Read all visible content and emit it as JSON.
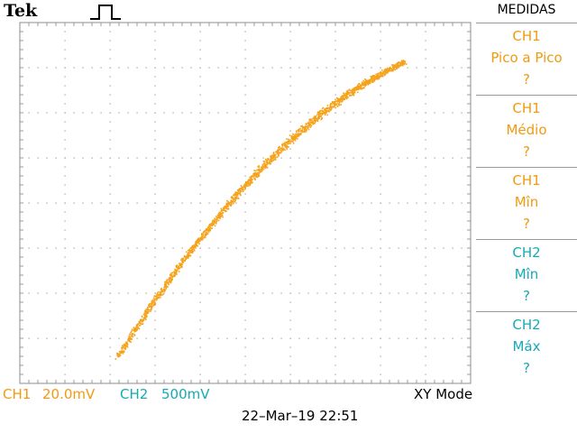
{
  "brand": "Tek",
  "menu": {
    "title": "MEDIDAS",
    "items": [
      {
        "line1": "CH1",
        "line2": "Pico a Pico",
        "value": "?",
        "color": "#f09a10"
      },
      {
        "line1": "CH1",
        "line2": "Médio",
        "value": "?",
        "color": "#f09a10"
      },
      {
        "line1": "CH1",
        "line2": "Mîn",
        "value": "?",
        "color": "#f09a10"
      },
      {
        "line1": "CH2",
        "line2": "Mîn",
        "value": "?",
        "color": "#17a9b5"
      },
      {
        "line1": "CH2",
        "line2": "Máx",
        "value": "?",
        "color": "#17a9b5"
      }
    ]
  },
  "status": {
    "ch1_label": "CH1",
    "ch1_scale": "20.0mV",
    "ch2_label": "CH2",
    "ch2_scale": "500mV",
    "mode": "XY Mode",
    "datetime": "22–Mar–19 22:51"
  },
  "trace_color": "#f5a21a"
}
